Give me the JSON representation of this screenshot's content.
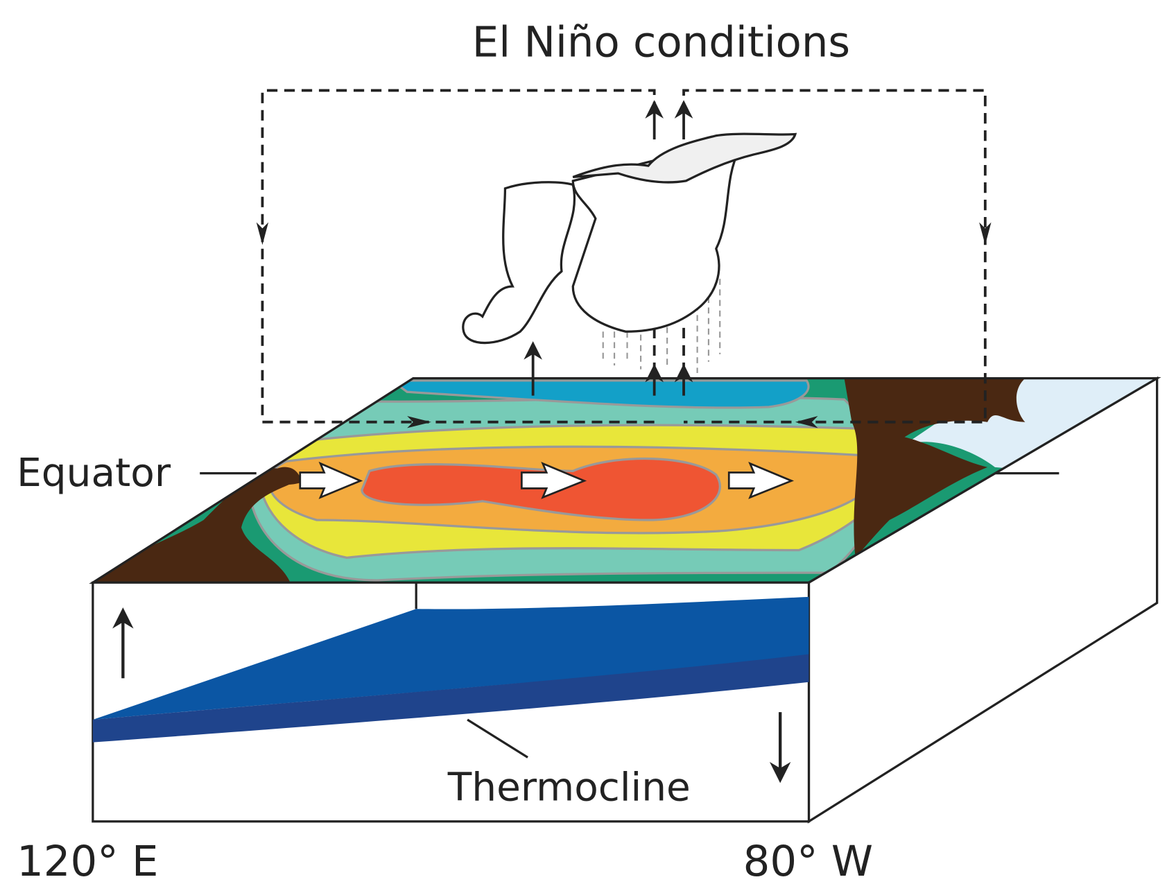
{
  "title": "El Niño conditions",
  "labels": {
    "equator": "Equator",
    "thermocline": "Thermocline",
    "west": "120° E",
    "east": "80° W"
  }
}
